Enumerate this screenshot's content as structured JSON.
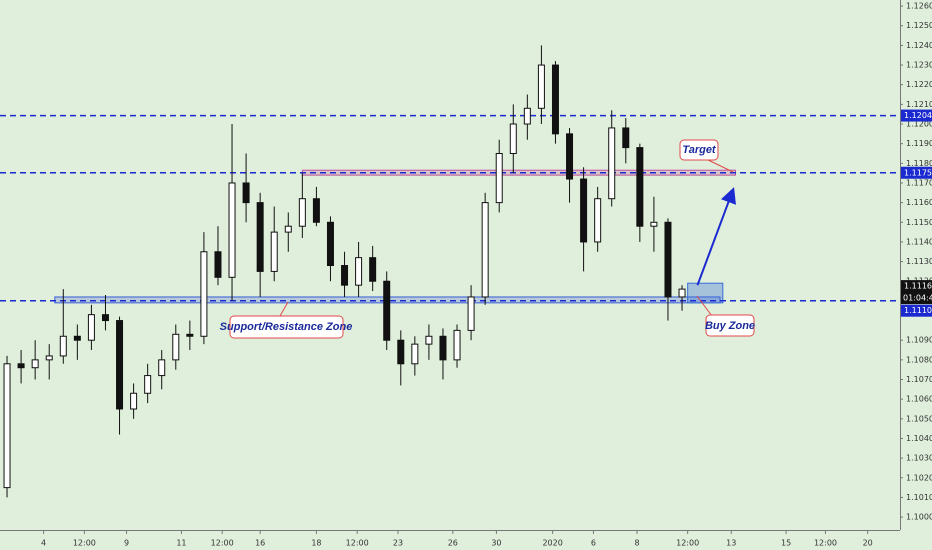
{
  "chart_data": {
    "type": "candlestick",
    "open": [
      1.1015,
      1.1078,
      1.1076,
      1.108,
      1.1082,
      1.1092,
      1.109,
      1.1103,
      1.11,
      1.1055,
      1.1063,
      1.1072,
      1.108,
      1.1093,
      1.1092,
      1.1135,
      1.1122,
      1.117,
      1.116,
      1.1125,
      1.1145,
      1.1148,
      1.1162,
      1.115,
      1.1128,
      1.1118,
      1.1132,
      1.112,
      1.109,
      1.1078,
      1.1088,
      1.1092,
      1.108,
      1.1095,
      1.1112,
      1.116,
      1.1185,
      1.12,
      1.1208,
      1.123,
      1.1195,
      1.1172,
      1.114,
      1.1162,
      1.1198,
      1.1188,
      1.1148,
      1.115,
      1.1112
    ],
    "high": [
      1.1082,
      1.1085,
      1.109,
      1.1088,
      1.1116,
      1.1098,
      1.1108,
      1.1113,
      1.1102,
      1.1068,
      1.1078,
      1.1085,
      1.1098,
      1.11,
      1.1145,
      1.1148,
      1.12,
      1.1185,
      1.1165,
      1.1158,
      1.1155,
      1.1175,
      1.1168,
      1.1153,
      1.1135,
      1.114,
      1.1138,
      1.1125,
      1.1095,
      1.1092,
      1.1098,
      1.1096,
      1.1098,
      1.1118,
      1.1165,
      1.1192,
      1.121,
      1.1215,
      1.124,
      1.1232,
      1.1198,
      1.1178,
      1.1168,
      1.1207,
      1.1203,
      1.119,
      1.1163,
      1.1152,
      1.1118
    ],
    "low": [
      1.101,
      1.1068,
      1.107,
      1.107,
      1.1078,
      1.108,
      1.1085,
      1.1095,
      1.1042,
      1.105,
      1.1058,
      1.1065,
      1.1075,
      1.1085,
      1.1088,
      1.1118,
      1.111,
      1.115,
      1.1112,
      1.112,
      1.1135,
      1.1142,
      1.1148,
      1.112,
      1.1112,
      1.1112,
      1.1115,
      1.1085,
      1.1067,
      1.1072,
      1.108,
      1.107,
      1.1076,
      1.109,
      1.1108,
      1.1155,
      1.1175,
      1.1192,
      1.12,
      1.119,
      1.116,
      1.1125,
      1.1135,
      1.1158,
      1.118,
      1.114,
      1.1135,
      1.11,
      1.1105
    ],
    "close": [
      1.1078,
      1.1076,
      1.108,
      1.1082,
      1.1092,
      1.109,
      1.1103,
      1.11,
      1.1055,
      1.1063,
      1.1072,
      1.108,
      1.1093,
      1.1092,
      1.1135,
      1.1122,
      1.117,
      1.116,
      1.1125,
      1.1145,
      1.1148,
      1.1162,
      1.115,
      1.1128,
      1.1118,
      1.1132,
      1.112,
      1.109,
      1.1078,
      1.1088,
      1.1092,
      1.108,
      1.1095,
      1.1112,
      1.116,
      1.1185,
      1.12,
      1.1208,
      1.123,
      1.1195,
      1.1172,
      1.114,
      1.1162,
      1.1198,
      1.1188,
      1.1148,
      1.115,
      1.1112,
      1.1116
    ],
    "xlim": [
      0,
      64
    ],
    "xticks": [
      {
        "value": 3.1,
        "label": "4"
      },
      {
        "value": 6.0,
        "label": "12:00"
      },
      {
        "value": 9.0,
        "label": "9"
      },
      {
        "value": 12.9,
        "label": "11"
      },
      {
        "value": 15.8,
        "label": "12:00"
      },
      {
        "value": 18.5,
        "label": "16"
      },
      {
        "value": 22.5,
        "label": "18"
      },
      {
        "value": 25.4,
        "label": "12:00"
      },
      {
        "value": 28.3,
        "label": "23"
      },
      {
        "value": 32.2,
        "label": "26"
      },
      {
        "value": 35.3,
        "label": "30"
      },
      {
        "value": 39.3,
        "label": "2020"
      },
      {
        "value": 42.2,
        "label": "6"
      },
      {
        "value": 45.3,
        "label": "8"
      },
      {
        "value": 48.9,
        "label": "12:00"
      },
      {
        "value": 52.0,
        "label": "13"
      },
      {
        "value": 55.9,
        "label": "15"
      },
      {
        "value": 58.7,
        "label": "12:00"
      },
      {
        "value": 61.7,
        "label": "20"
      }
    ],
    "ylim": [
      1.09975,
      1.12631
    ],
    "yticks": [
      {
        "value": 1.126,
        "label": "1.12600"
      },
      {
        "value": 1.125,
        "label": "1.12500"
      },
      {
        "value": 1.124,
        "label": "1.12400"
      },
      {
        "value": 1.123,
        "label": "1.12300"
      },
      {
        "value": 1.122,
        "label": "1.12200"
      },
      {
        "value": 1.121,
        "label": "1.12100"
      },
      {
        "value": 1.12,
        "label": "1.12000"
      },
      {
        "value": 1.119,
        "label": "1.11900"
      },
      {
        "value": 1.118,
        "label": "1.11800"
      },
      {
        "value": 1.117,
        "label": "1.11700"
      },
      {
        "value": 1.116,
        "label": "1.11600"
      },
      {
        "value": 1.115,
        "label": "1.11500"
      },
      {
        "value": 1.114,
        "label": "1.11400"
      },
      {
        "value": 1.113,
        "label": "1.11300"
      },
      {
        "value": 1.112,
        "label": "1.11200"
      },
      {
        "value": 1.109,
        "label": "1.10900"
      },
      {
        "value": 1.108,
        "label": "1.10800"
      },
      {
        "value": 1.107,
        "label": "1.10700"
      },
      {
        "value": 1.106,
        "label": "1.10600"
      },
      {
        "value": 1.105,
        "label": "1.10500"
      },
      {
        "value": 1.104,
        "label": "1.10400"
      },
      {
        "value": 1.103,
        "label": "1.10300"
      },
      {
        "value": 1.102,
        "label": "1.10200"
      },
      {
        "value": 1.101,
        "label": "1.10100"
      },
      {
        "value": 1.1,
        "label": "1.10000"
      }
    ],
    "levels": [
      {
        "value": 1.12043,
        "label": "1.12043"
      },
      {
        "value": 1.11752,
        "label": "1.11752"
      },
      {
        "value": 1.11101,
        "label": "1.11101"
      }
    ],
    "last_price": {
      "value": 1.1116,
      "label": "1.11160",
      "countdown": "01:04:40"
    },
    "zones": [
      {
        "name": "Support/Resistance Zone",
        "low": 1.1109,
        "high": 1.1112,
        "x0": 3.9,
        "x1": 51.2,
        "color": "#3a5bd9"
      },
      {
        "name": "Target",
        "low": 1.1174,
        "high": 1.11765,
        "x0": 21.5,
        "x1": 52.3,
        "color": "#c0509a"
      },
      {
        "name": "Buy Zone",
        "low": 1.1109,
        "high": 1.1119,
        "x0": 48.9,
        "x1": 51.4,
        "color": "#3a6fd9"
      }
    ],
    "arrow_from": [
      49.6,
      1.1118
    ],
    "arrow_to": [
      52.1,
      1.1166
    ]
  }
}
